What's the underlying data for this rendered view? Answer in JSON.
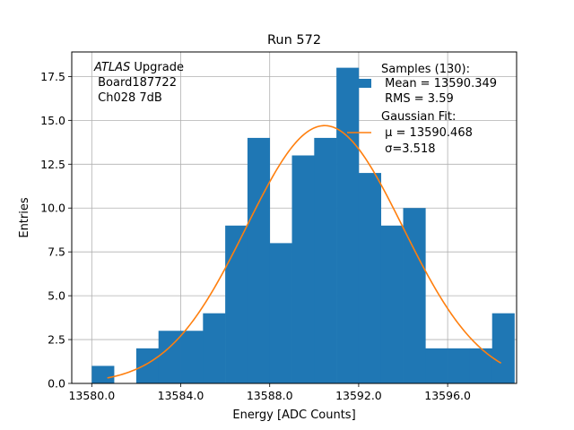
{
  "chart_data": {
    "type": "bar",
    "title": "Run 572",
    "xlabel": "Energy [ADC Counts]",
    "ylabel": "Entries",
    "xlim": [
      13579.1,
      13599.1
    ],
    "ylim": [
      0,
      18.9
    ],
    "grid": true,
    "x_ticks": [
      13580.0,
      13584.0,
      13588.0,
      13592.0,
      13596.0
    ],
    "x_tick_labels": [
      "13580.0",
      "13584.0",
      "13588.0",
      "13592.0",
      "13596.0"
    ],
    "y_ticks": [
      0,
      2.5,
      5,
      7.5,
      10,
      12.5,
      15,
      17.5
    ],
    "y_tick_labels": [
      "0.0",
      "2.5",
      "5.0",
      "7.5",
      "10.0",
      "12.5",
      "15.0",
      "17.5"
    ],
    "histogram": {
      "name": "Samples (130):",
      "bin_edges": [
        13580.0,
        13581.0,
        13582.0,
        13583.0,
        13584.0,
        13585.0,
        13586.0,
        13587.0,
        13588.0,
        13589.0,
        13590.0,
        13591.0,
        13592.0,
        13593.0,
        13594.0,
        13595.0,
        13596.0,
        13597.0,
        13598.0,
        13599.0
      ],
      "counts": [
        1,
        0,
        2,
        3,
        3,
        4,
        9,
        14,
        8,
        13,
        14,
        18,
        12,
        9,
        10,
        2,
        2,
        2,
        4
      ],
      "color": "#1f77b4"
    },
    "fit": {
      "name": "Gaussian Fit:",
      "type": "gaussian",
      "mu": 13590.468,
      "sigma": 3.518,
      "amplitude": 14.7,
      "x_range": [
        13580.7,
        13598.4
      ],
      "color": "#ff7f0e"
    },
    "legend": {
      "position": "top-right",
      "hist_lines": [
        "Samples (130):",
        " Mean = 13590.349",
        " RMS = 3.59"
      ],
      "fit_lines": [
        "Gaussian Fit:",
        " μ = 13590.468",
        " σ=3.518"
      ]
    },
    "annotation": {
      "italic": "ATLAS",
      "rest": " Upgrade",
      "lines": [
        " Board187722",
        " Ch028 7dB"
      ]
    }
  }
}
